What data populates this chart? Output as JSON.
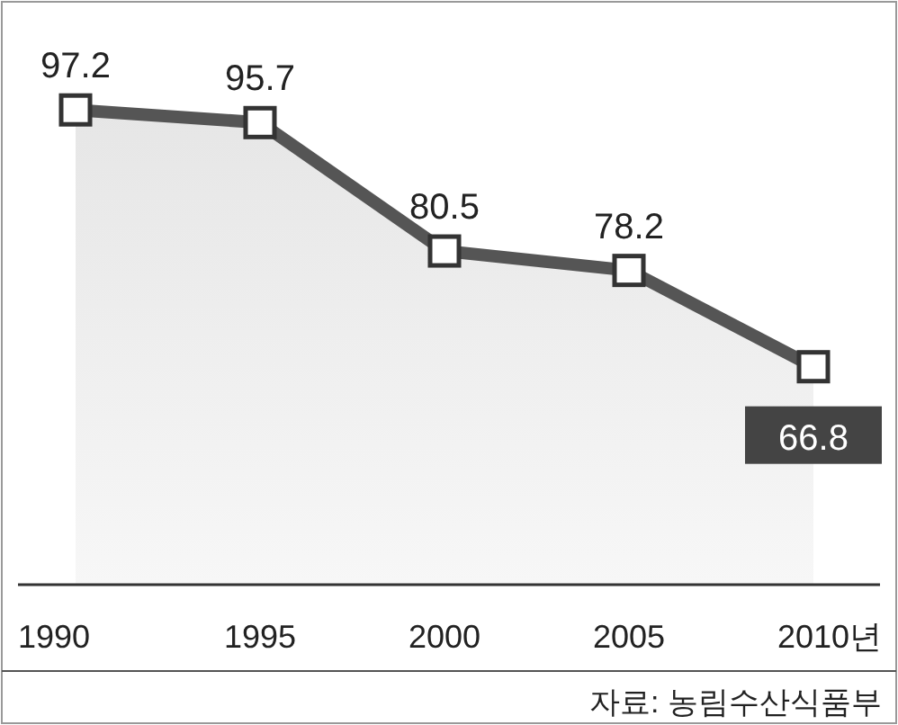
{
  "chart_data": {
    "type": "area",
    "categories": [
      "1990",
      "1995",
      "2000",
      "2005",
      "2010년"
    ],
    "values": [
      97.2,
      95.7,
      80.5,
      78.2,
      66.8
    ],
    "color": "#555555",
    "ylim": [
      41,
      110
    ],
    "marker": "square",
    "data_labels": true,
    "annotations": [
      "자료: 농림수산식품부"
    ]
  }
}
